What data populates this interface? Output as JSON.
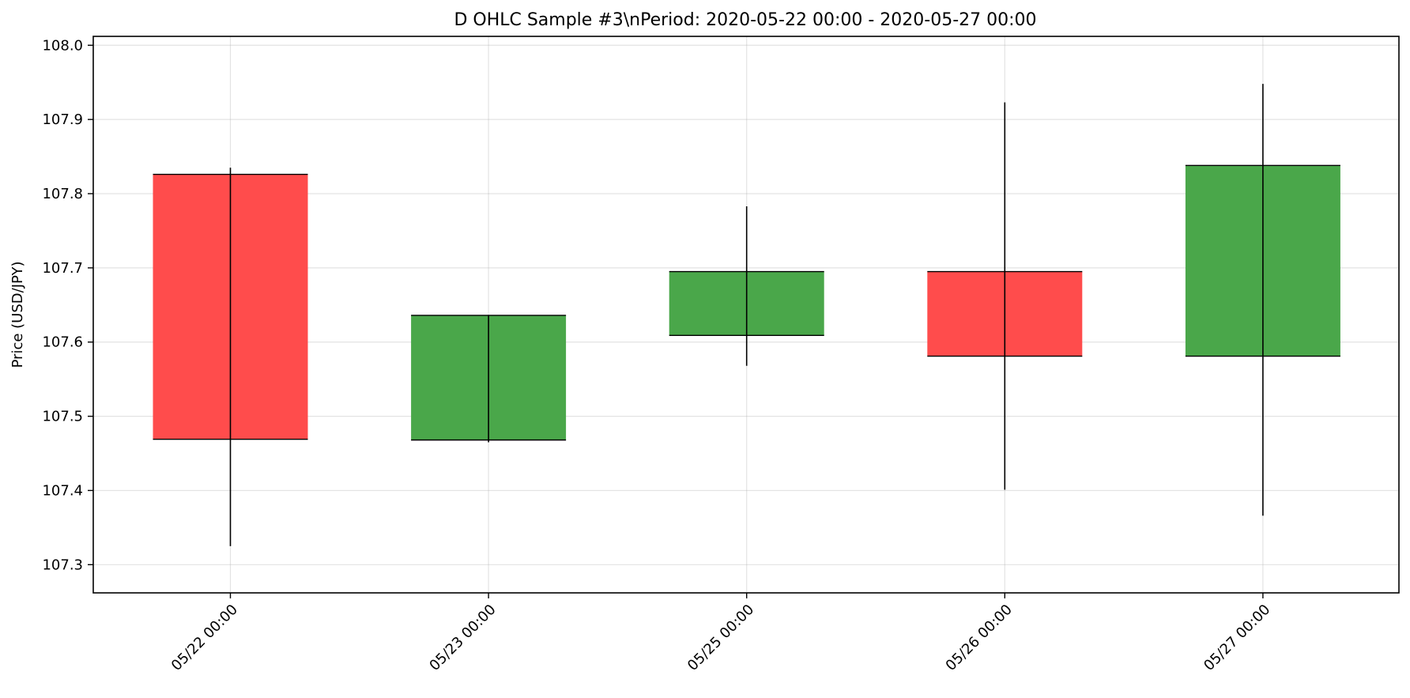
{
  "chart_data": {
    "type": "candlestick",
    "title": "D OHLC Sample #3\\nPeriod: 2020-05-22 00:00 - 2020-05-27 00:00",
    "xlabel": "",
    "ylabel": "Price (USD/JPY)",
    "ylim": [
      107.262,
      108.012
    ],
    "yticks": [
      "107.3",
      "107.4",
      "107.5",
      "107.6",
      "107.7",
      "107.8",
      "107.9",
      "108.0"
    ],
    "grid": true,
    "colors": {
      "up": "#4aa74a",
      "down": "#ff4c4c",
      "wick": "#000000",
      "grid": "#b0b0b0"
    },
    "candles": [
      {
        "label": "05/22 00:00",
        "open": 107.826,
        "high": 107.835,
        "low": 107.325,
        "close": 107.469
      },
      {
        "label": "05/23 00:00",
        "open": 107.468,
        "high": 107.636,
        "low": 107.465,
        "close": 107.636
      },
      {
        "label": "05/25 00:00",
        "open": 107.609,
        "high": 107.783,
        "low": 107.568,
        "close": 107.695
      },
      {
        "label": "05/26 00:00",
        "open": 107.695,
        "high": 107.923,
        "low": 107.401,
        "close": 107.581
      },
      {
        "label": "05/27 00:00",
        "open": 107.581,
        "high": 107.948,
        "low": 107.366,
        "close": 107.838
      }
    ]
  }
}
